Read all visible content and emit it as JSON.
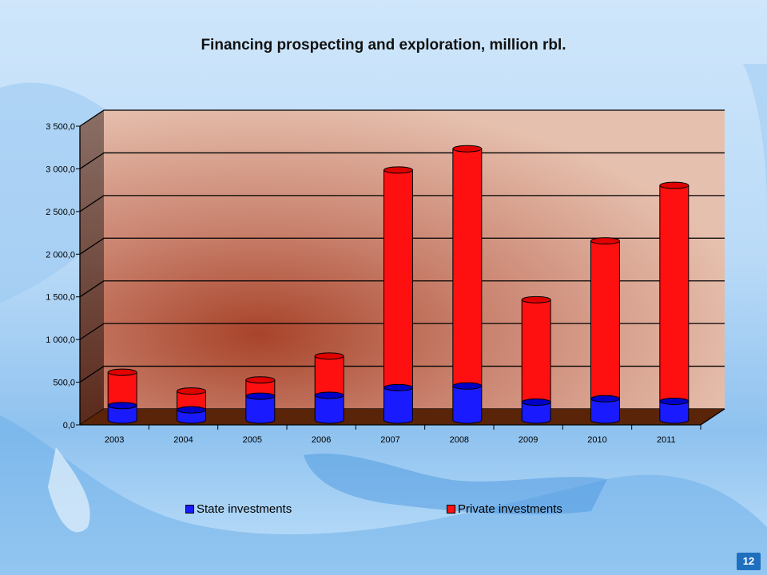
{
  "page": {
    "number": "12"
  },
  "chart_data": {
    "type": "bar",
    "stacked": true,
    "title": "Financing prospecting and exploration, million rbl.",
    "categories": [
      "2003",
      "2004",
      "2005",
      "2006",
      "2007",
      "2008",
      "2009",
      "2010",
      "2011"
    ],
    "series": [
      {
        "name": "State investments",
        "color": "#1a1aff",
        "values": [
          170,
          120,
          280,
          290,
          380,
          400,
          210,
          250,
          220
        ]
      },
      {
        "name": "Private investments",
        "color": "#ff1010",
        "values": [
          390,
          220,
          190,
          460,
          2550,
          2780,
          1200,
          1850,
          2530
        ]
      }
    ],
    "ylim": [
      0,
      3500
    ],
    "yticks": [
      "0,0",
      "500,0",
      "1 000,0",
      "1 500,0",
      "2 000,0",
      "2 500,0",
      "3 000,0",
      "3 500,0"
    ],
    "ytick_values": [
      0,
      500,
      1000,
      1500,
      2000,
      2500,
      3000,
      3500
    ],
    "legend_position": "bottom",
    "grid": true
  }
}
